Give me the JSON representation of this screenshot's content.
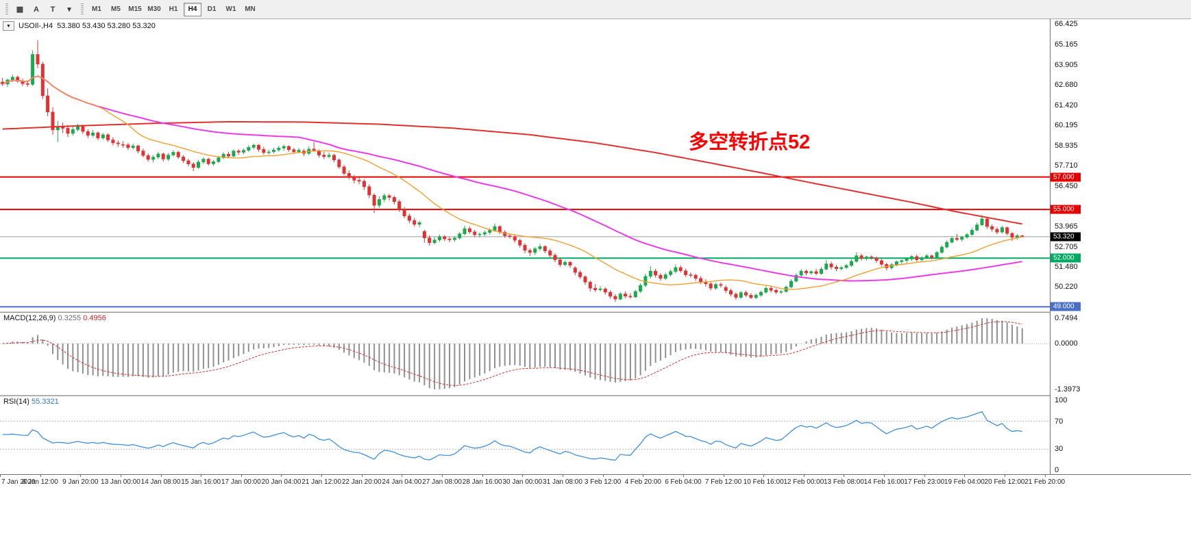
{
  "toolbar": {
    "tool_buttons": [
      {
        "name": "grid-tool",
        "label": "▦"
      },
      {
        "name": "text-tool",
        "label": "A"
      },
      {
        "name": "label-tool",
        "label": "T"
      },
      {
        "name": "shapes-dropdown",
        "label": "▾"
      }
    ],
    "timeframes": [
      "M1",
      "M5",
      "M15",
      "M30",
      "H1",
      "H4",
      "D1",
      "W1",
      "MN"
    ],
    "active_timeframe": "H4"
  },
  "chart": {
    "title": "USOIl-,H4",
    "ohlc": "53.380 53.430 53.280 53.320",
    "one_click_glyph": "▼",
    "annotation": {
      "text": "多空转折点52",
      "color": "#FF0000"
    },
    "scale_labels": [
      "66.425",
      "65.165",
      "63.905",
      "62.680",
      "61.420",
      "60.195",
      "58.935",
      "57.710",
      "56.450",
      "53.965",
      "52.705",
      "51.480",
      "50.220"
    ],
    "levels": [
      {
        "price": 57.0,
        "label": "57.000",
        "color": "#E60000"
      },
      {
        "price": 55.0,
        "label": "55.000",
        "color": "#E60000"
      },
      {
        "price": 52.0,
        "label": "52.000",
        "color": "#00A961"
      },
      {
        "price": 49.0,
        "label": "49.000",
        "color": "#4A6FC8"
      }
    ],
    "current_price": {
      "price": 53.32,
      "label": "53.320",
      "line_color": "#9a9a9a",
      "badge_bg": "#000000"
    }
  },
  "macd": {
    "name": "MACD(12,26,9)",
    "main": "0.3255",
    "signal": "0.4956",
    "scale_top": "0.7494",
    "scale_zero": "0.0000",
    "scale_bottom": "-1.3973",
    "periods": [
      12,
      26,
      9
    ]
  },
  "rsi": {
    "name": "RSI(14)",
    "value": "55.3321",
    "period": 14,
    "scale": [
      "100",
      "70",
      "30",
      "0"
    ],
    "levels": [
      70,
      30
    ]
  },
  "time_axis": [
    "7 Jan 2020",
    "8 Jan 12:00",
    "9 Jan 20:00",
    "13 Jan 00:00",
    "14 Jan 08:00",
    "15 Jan 16:00",
    "17 Jan 00:00",
    "20 Jan 04:00",
    "21 Jan 12:00",
    "22 Jan 20:00",
    "24 Jan 04:00",
    "27 Jan 08:00",
    "28 Jan 16:00",
    "30 Jan 00:00",
    "31 Jan 08:00",
    "3 Feb 12:00",
    "4 Feb 20:00",
    "6 Feb 04:00",
    "7 Feb 12:00",
    "10 Feb 16:00",
    "12 Feb 00:00",
    "13 Feb 08:00",
    "14 Feb 16:00",
    "17 Feb 23:00",
    "19 Feb 04:00",
    "20 Feb 12:00",
    "21 Feb 20:00"
  ],
  "chart_data": {
    "type": "candlestick",
    "symbol": "USOIl-",
    "timeframe": "H4",
    "ylim": [
      48.85,
      66.55
    ],
    "colors": {
      "up": "#1CA94E",
      "down": "#E03232",
      "ma_red": "#E03030",
      "ma_magenta": "#E93BE9",
      "ma_orange": "#F0A030",
      "macd_hist": "#8f8f8f",
      "macd_signal": "#D42B2B",
      "rsi_line": "#3E8EDE",
      "level_dotted": "#b8b8b8"
    },
    "ma_orange_period": 20,
    "ma_magenta_period": 60,
    "ma_red_waypoints": [
      [
        0,
        59.95
      ],
      [
        15,
        60.15
      ],
      [
        30,
        60.3
      ],
      [
        45,
        60.4
      ],
      [
        60,
        60.38
      ],
      [
        75,
        60.25
      ],
      [
        90,
        60.0
      ],
      [
        105,
        59.6
      ],
      [
        118,
        59.1
      ],
      [
        130,
        58.5
      ],
      [
        142,
        57.8
      ],
      [
        152,
        57.2
      ],
      [
        160,
        56.7
      ],
      [
        170,
        56.1
      ],
      [
        180,
        55.5
      ],
      [
        190,
        54.85
      ],
      [
        197,
        54.45
      ],
      [
        203,
        54.1
      ]
    ],
    "candles": [
      [
        62.85,
        63.1,
        62.6,
        62.72
      ],
      [
        62.72,
        63.05,
        62.55,
        62.98
      ],
      [
        62.98,
        63.3,
        62.85,
        63.15
      ],
      [
        63.15,
        63.25,
        62.8,
        62.9
      ],
      [
        62.9,
        63.05,
        62.6,
        62.75
      ],
      [
        62.75,
        62.95,
        62.55,
        62.7
      ],
      [
        62.7,
        64.8,
        62.6,
        64.55
      ],
      [
        64.55,
        65.43,
        63.7,
        63.95
      ],
      [
        63.95,
        64.1,
        61.8,
        62.0
      ],
      [
        62.0,
        62.45,
        60.75,
        61.0
      ],
      [
        61.0,
        61.3,
        59.6,
        59.9
      ],
      [
        59.9,
        60.45,
        59.15,
        60.1
      ],
      [
        60.1,
        60.35,
        59.7,
        60.0
      ],
      [
        60.0,
        60.2,
        59.45,
        59.68
      ],
      [
        59.68,
        60.1,
        59.55,
        59.92
      ],
      [
        59.92,
        60.28,
        59.8,
        60.15
      ],
      [
        60.15,
        60.22,
        59.65,
        59.8
      ],
      [
        59.8,
        59.95,
        59.4,
        59.56
      ],
      [
        59.56,
        59.9,
        59.45,
        59.72
      ],
      [
        59.72,
        59.8,
        59.25,
        59.4
      ],
      [
        59.4,
        59.7,
        59.3,
        59.6
      ],
      [
        59.6,
        59.68,
        59.15,
        59.28
      ],
      [
        59.28,
        59.45,
        58.95,
        59.1
      ],
      [
        59.1,
        59.25,
        58.85,
        59.04
      ],
      [
        59.0,
        59.2,
        58.8,
        58.98
      ],
      [
        58.98,
        59.1,
        58.65,
        58.8
      ],
      [
        58.8,
        59.05,
        58.7,
        58.92
      ],
      [
        58.92,
        58.98,
        58.45,
        58.6
      ],
      [
        58.6,
        58.75,
        58.2,
        58.32
      ],
      [
        58.32,
        58.45,
        57.95,
        58.08
      ],
      [
        58.08,
        58.35,
        57.9,
        58.22
      ],
      [
        58.22,
        58.55,
        58.1,
        58.42
      ],
      [
        58.42,
        58.5,
        57.95,
        58.1
      ],
      [
        58.1,
        58.48,
        58.0,
        58.35
      ],
      [
        58.35,
        58.65,
        58.25,
        58.52
      ],
      [
        58.52,
        58.6,
        58.1,
        58.23
      ],
      [
        58.23,
        58.35,
        57.85,
        58.0
      ],
      [
        58.0,
        58.12,
        57.65,
        57.8
      ],
      [
        57.8,
        57.92,
        57.36,
        57.58
      ],
      [
        57.58,
        58.05,
        57.5,
        57.92
      ],
      [
        57.92,
        58.22,
        57.8,
        58.1
      ],
      [
        58.1,
        58.18,
        57.7,
        57.81
      ],
      [
        57.81,
        58.05,
        57.7,
        57.94
      ],
      [
        57.94,
        58.3,
        57.85,
        58.18
      ],
      [
        58.18,
        58.52,
        58.1,
        58.4
      ],
      [
        58.4,
        58.55,
        58.15,
        58.28
      ],
      [
        58.28,
        58.7,
        58.2,
        58.6
      ],
      [
        58.6,
        58.72,
        58.35,
        58.52
      ],
      [
        58.52,
        58.75,
        58.4,
        58.64
      ],
      [
        58.64,
        58.95,
        58.55,
        58.82
      ],
      [
        58.82,
        59.05,
        58.7,
        58.96
      ],
      [
        58.96,
        59.02,
        58.55,
        58.7
      ],
      [
        58.7,
        58.85,
        58.38,
        58.5
      ],
      [
        58.5,
        58.68,
        58.35,
        58.54
      ],
      [
        58.56,
        58.8,
        58.45,
        58.66
      ],
      [
        58.66,
        58.92,
        58.55,
        58.78
      ],
      [
        58.78,
        59.0,
        58.62,
        58.88
      ],
      [
        58.88,
        58.96,
        58.55,
        58.68
      ],
      [
        58.68,
        58.8,
        58.42,
        58.55
      ],
      [
        58.55,
        58.78,
        58.45,
        58.65
      ],
      [
        58.6,
        58.72,
        58.3,
        58.45
      ],
      [
        58.45,
        58.9,
        58.35,
        58.72
      ],
      [
        58.72,
        59.15,
        58.55,
        58.62
      ],
      [
        58.62,
        58.7,
        58.2,
        58.35
      ],
      [
        58.35,
        58.55,
        58.1,
        58.25
      ],
      [
        58.25,
        58.5,
        58.15,
        58.34
      ],
      [
        58.34,
        58.42,
        57.9,
        58.05
      ],
      [
        58.05,
        58.15,
        57.5,
        57.62
      ],
      [
        57.62,
        57.75,
        57.1,
        57.22
      ],
      [
        57.22,
        57.4,
        56.85,
        57.0
      ],
      [
        57.0,
        57.12,
        56.6,
        56.8
      ],
      [
        56.8,
        56.95,
        56.55,
        56.74
      ],
      [
        56.74,
        56.85,
        56.2,
        56.4
      ],
      [
        56.4,
        56.55,
        55.7,
        55.88
      ],
      [
        55.88,
        56.0,
        54.77,
        55.25
      ],
      [
        55.25,
        55.8,
        55.1,
        55.62
      ],
      [
        55.62,
        55.98,
        55.45,
        55.85
      ],
      [
        55.85,
        55.95,
        55.55,
        55.74
      ],
      [
        55.74,
        55.85,
        55.3,
        55.48
      ],
      [
        55.48,
        55.6,
        54.85,
        55.0
      ],
      [
        55.0,
        55.15,
        54.45,
        54.6
      ],
      [
        54.6,
        54.75,
        54.15,
        54.32
      ],
      [
        54.32,
        54.48,
        53.95,
        54.08
      ],
      [
        54.08,
        54.3,
        53.9,
        54.19
      ],
      [
        53.65,
        53.75,
        52.95,
        53.25
      ],
      [
        53.25,
        53.4,
        52.76,
        52.95
      ],
      [
        52.95,
        53.3,
        52.85,
        53.12
      ],
      [
        53.12,
        53.45,
        53.0,
        53.32
      ],
      [
        53.32,
        53.42,
        53.05,
        53.18
      ],
      [
        53.18,
        53.3,
        52.98,
        53.14
      ],
      [
        53.14,
        53.35,
        53.0,
        53.24
      ],
      [
        53.24,
        53.6,
        53.15,
        53.5
      ],
      [
        53.5,
        54.0,
        53.4,
        53.82
      ],
      [
        53.82,
        53.95,
        53.5,
        53.62
      ],
      [
        53.62,
        53.75,
        53.3,
        53.44
      ],
      [
        53.44,
        53.58,
        53.28,
        53.48
      ],
      [
        53.48,
        53.7,
        53.35,
        53.58
      ],
      [
        53.58,
        53.85,
        53.45,
        53.72
      ],
      [
        53.72,
        54.13,
        53.6,
        53.95
      ],
      [
        53.95,
        54.02,
        53.48,
        53.6
      ],
      [
        53.6,
        53.72,
        53.25,
        53.38
      ],
      [
        53.38,
        53.52,
        53.2,
        53.33
      ],
      [
        53.33,
        53.42,
        52.95,
        53.1
      ],
      [
        53.1,
        53.2,
        52.65,
        52.8
      ],
      [
        52.8,
        52.92,
        52.3,
        52.48
      ],
      [
        52.48,
        52.6,
        52.13,
        52.35
      ],
      [
        52.35,
        52.7,
        52.2,
        52.58
      ],
      [
        52.58,
        52.88,
        52.45,
        52.72
      ],
      [
        52.72,
        52.8,
        52.3,
        52.45
      ],
      [
        52.45,
        52.58,
        52.05,
        52.18
      ],
      [
        52.18,
        52.3,
        51.75,
        51.9
      ],
      [
        51.9,
        52.02,
        51.45,
        51.6
      ],
      [
        51.6,
        51.85,
        51.5,
        51.75
      ],
      [
        51.75,
        51.82,
        51.4,
        51.56
      ],
      [
        51.4,
        51.5,
        50.95,
        51.12
      ],
      [
        51.12,
        51.25,
        50.7,
        50.85
      ],
      [
        50.85,
        50.95,
        50.35,
        50.52
      ],
      [
        50.52,
        50.62,
        49.95,
        50.15
      ],
      [
        50.15,
        50.4,
        49.91,
        50.05
      ],
      [
        50.05,
        50.28,
        49.95,
        50.11
      ],
      [
        50.11,
        50.2,
        49.75,
        49.9
      ],
      [
        49.9,
        50.02,
        49.5,
        49.65
      ],
      [
        49.65,
        49.78,
        49.31,
        49.48
      ],
      [
        49.48,
        49.92,
        49.4,
        49.8
      ],
      [
        49.8,
        49.95,
        49.52,
        49.66
      ],
      [
        49.66,
        49.85,
        49.5,
        49.61
      ],
      [
        49.61,
        50.05,
        49.55,
        49.95
      ],
      [
        49.95,
        50.45,
        49.85,
        50.32
      ],
      [
        50.32,
        51.05,
        50.22,
        50.88
      ],
      [
        50.88,
        51.5,
        50.75,
        51.2
      ],
      [
        51.2,
        51.35,
        50.8,
        50.95
      ],
      [
        50.95,
        51.08,
        50.6,
        50.75
      ],
      [
        50.75,
        51.1,
        50.65,
        50.98
      ],
      [
        50.98,
        51.3,
        50.85,
        51.18
      ],
      [
        51.18,
        51.61,
        51.05,
        51.42
      ],
      [
        51.42,
        51.55,
        51.1,
        51.22
      ],
      [
        51.22,
        51.35,
        50.85,
        50.98
      ],
      [
        50.98,
        51.12,
        50.8,
        50.95
      ],
      [
        50.95,
        51.05,
        50.6,
        50.75
      ],
      [
        50.75,
        50.88,
        50.4,
        50.55
      ],
      [
        50.55,
        50.7,
        50.25,
        50.42
      ],
      [
        50.42,
        50.52,
        50.0,
        50.15
      ],
      [
        50.15,
        50.48,
        50.05,
        50.38
      ],
      [
        50.38,
        50.5,
        50.18,
        50.32
      ],
      [
        50.2,
        50.32,
        49.85,
        50.0
      ],
      [
        50.0,
        50.12,
        49.65,
        49.78
      ],
      [
        49.78,
        49.9,
        49.43,
        49.58
      ],
      [
        49.58,
        49.98,
        49.5,
        49.88
      ],
      [
        49.88,
        50.0,
        49.6,
        49.72
      ],
      [
        49.72,
        49.85,
        49.48,
        49.57
      ],
      [
        49.57,
        49.82,
        49.48,
        49.72
      ],
      [
        49.72,
        50.0,
        49.62,
        49.9
      ],
      [
        49.9,
        50.28,
        49.82,
        50.15
      ],
      [
        50.15,
        50.25,
        49.88,
        50.02
      ],
      [
        50.02,
        50.12,
        49.78,
        49.9
      ],
      [
        49.9,
        50.05,
        49.8,
        49.94
      ],
      [
        49.94,
        50.3,
        49.88,
        50.22
      ],
      [
        50.22,
        50.7,
        50.15,
        50.58
      ],
      [
        50.58,
        51.05,
        50.5,
        50.95
      ],
      [
        50.95,
        51.32,
        50.85,
        51.2
      ],
      [
        51.2,
        51.3,
        50.95,
        51.08
      ],
      [
        51.08,
        51.25,
        50.98,
        51.17
      ],
      [
        51.17,
        51.35,
        50.95,
        51.05
      ],
      [
        51.05,
        51.45,
        50.98,
        51.32
      ],
      [
        51.32,
        51.9,
        51.25,
        51.65
      ],
      [
        51.65,
        51.78,
        51.3,
        51.45
      ],
      [
        51.45,
        51.58,
        51.2,
        51.35
      ],
      [
        51.35,
        51.52,
        51.25,
        51.42
      ],
      [
        51.42,
        51.65,
        51.32,
        51.55
      ],
      [
        51.55,
        51.92,
        51.45,
        51.8
      ],
      [
        51.8,
        52.36,
        51.72,
        52.15
      ],
      [
        52.15,
        52.28,
        51.85,
        51.98
      ],
      [
        51.98,
        52.15,
        51.85,
        52.08
      ],
      [
        52.08,
        52.18,
        51.9,
        52.05
      ],
      [
        52.0,
        52.1,
        51.7,
        51.85
      ],
      [
        51.85,
        51.95,
        51.5,
        51.62
      ],
      [
        51.62,
        51.72,
        51.25,
        51.4
      ],
      [
        51.4,
        51.7,
        51.3,
        51.6
      ],
      [
        51.6,
        51.85,
        51.5,
        51.78
      ],
      [
        51.78,
        51.92,
        51.65,
        51.85
      ],
      [
        51.85,
        52.05,
        51.7,
        51.95
      ],
      [
        51.95,
        52.18,
        51.82,
        52.1
      ],
      [
        52.1,
        52.22,
        51.78,
        51.9
      ],
      [
        51.9,
        52.12,
        51.8,
        52.02
      ],
      [
        52.02,
        52.25,
        51.95,
        52.15
      ],
      [
        52.15,
        52.22,
        51.92,
        52.05
      ],
      [
        52.05,
        52.45,
        52.0,
        52.35
      ],
      [
        52.35,
        52.8,
        52.28,
        52.68
      ],
      [
        52.68,
        53.1,
        52.6,
        52.98
      ],
      [
        52.98,
        53.35,
        52.9,
        53.22
      ],
      [
        53.22,
        53.49,
        53.05,
        53.15
      ],
      [
        53.15,
        53.38,
        53.02,
        53.29
      ],
      [
        53.29,
        53.55,
        53.2,
        53.45
      ],
      [
        53.45,
        53.85,
        53.38,
        53.72
      ],
      [
        53.72,
        54.2,
        53.65,
        54.05
      ],
      [
        54.05,
        54.66,
        53.98,
        54.42
      ],
      [
        54.42,
        54.55,
        53.8,
        53.95
      ],
      [
        53.95,
        54.08,
        53.62,
        53.78
      ],
      [
        53.78,
        53.92,
        53.48,
        53.6
      ],
      [
        53.6,
        54.0,
        53.52,
        53.88
      ],
      [
        53.88,
        53.95,
        53.4,
        53.52
      ],
      [
        53.52,
        53.62,
        53.06,
        53.28
      ],
      [
        53.28,
        53.48,
        53.15,
        53.38
      ],
      [
        53.38,
        53.43,
        53.28,
        53.32
      ]
    ]
  }
}
